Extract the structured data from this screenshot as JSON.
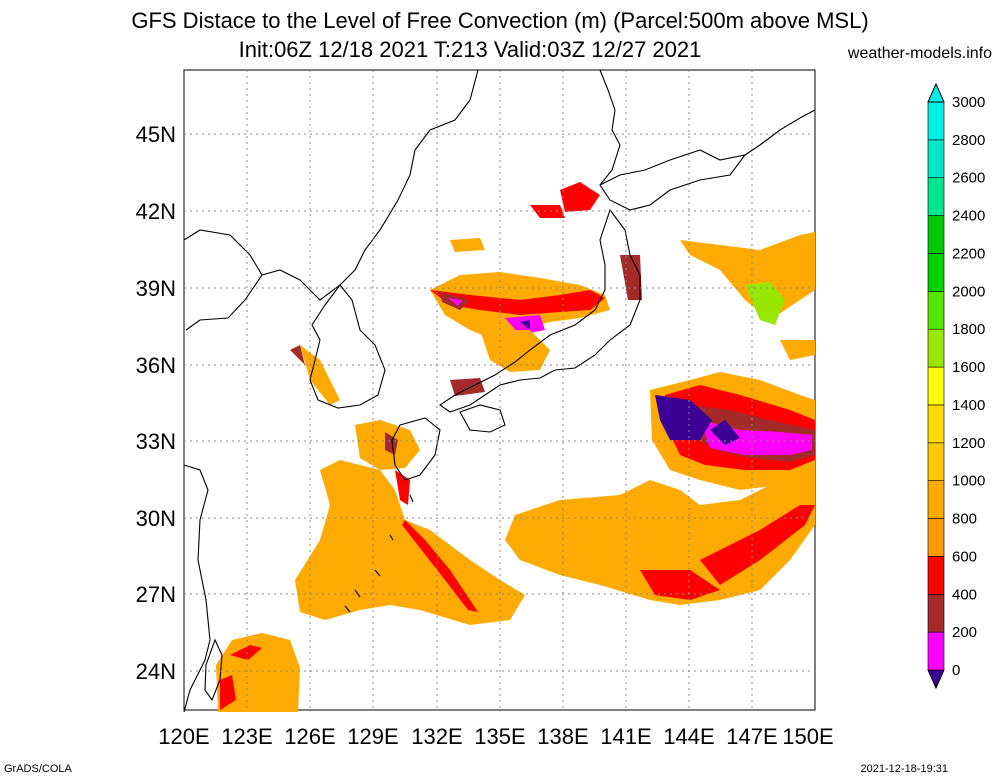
{
  "title": {
    "line1": "GFS Distace to the Level of Free Convection (m) (Parcel:500m above MSL)",
    "line2": "Init:06Z 12/18 2021 T:213 Valid:03Z 12/27 2021"
  },
  "site": "weather-models.info",
  "footer": {
    "left": "GrADS/COLA",
    "right": "2021-12-18-19:31"
  },
  "map": {
    "lon_labels": [
      "120E",
      "123E",
      "126E",
      "129E",
      "132E",
      "135E",
      "138E",
      "141E",
      "144E",
      "147E",
      "150E"
    ],
    "lat_labels": [
      "24N",
      "27N",
      "30N",
      "33N",
      "36N",
      "39N",
      "42N",
      "45N"
    ],
    "grid": "dotted"
  },
  "colorbar": {
    "labels": [
      "0",
      "200",
      "400",
      "600",
      "800",
      "1000",
      "1200",
      "1400",
      "1600",
      "1800",
      "2000",
      "2200",
      "2400",
      "2600",
      "2800",
      "3000"
    ],
    "colors": [
      "#3c0096",
      "#ff00ff",
      "#a52a2a",
      "#ff0000",
      "#ff9900",
      "#ffaa00",
      "#ffc800",
      "#ffdd00",
      "#ffff00",
      "#99e600",
      "#55e600",
      "#00d200",
      "#00c800",
      "#00e68c",
      "#00e6c8",
      "#00f0e6"
    ]
  }
}
